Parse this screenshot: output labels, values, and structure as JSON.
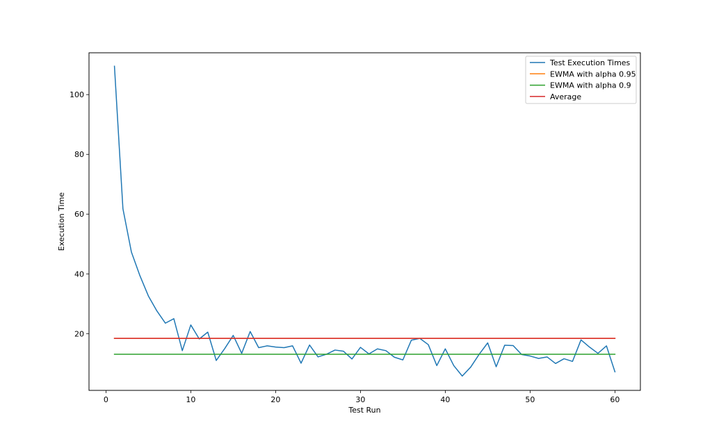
{
  "chart_data": {
    "type": "line",
    "title": "",
    "xlabel": "Test Run",
    "ylabel": "Execution Time",
    "xlim": [
      -2,
      63
    ],
    "ylim": [
      1,
      114
    ],
    "xticks": [
      0,
      10,
      20,
      30,
      40,
      50,
      60
    ],
    "yticks": [
      20,
      40,
      60,
      80,
      100
    ],
    "grid": false,
    "legend_position": "top-right",
    "x": [
      1,
      2,
      3,
      4,
      5,
      6,
      7,
      8,
      9,
      10,
      11,
      12,
      13,
      14,
      15,
      16,
      17,
      18,
      19,
      20,
      21,
      22,
      23,
      24,
      25,
      26,
      27,
      28,
      29,
      30,
      31,
      32,
      33,
      34,
      35,
      36,
      37,
      38,
      39,
      40,
      41,
      42,
      43,
      44,
      45,
      46,
      47,
      48,
      49,
      50,
      51,
      52,
      53,
      54,
      55,
      56,
      57,
      58,
      59,
      60
    ],
    "series": [
      {
        "name": "Test Execution Times",
        "color": "#1f77b4",
        "values": [
          109.5,
          61.8,
          47.3,
          39.4,
          32.6,
          27.6,
          23.5,
          25.0,
          14.3,
          22.9,
          18.2,
          20.5,
          11.0,
          15.0,
          19.4,
          13.4,
          20.7,
          15.3,
          15.9,
          15.5,
          15.3,
          15.9,
          10.1,
          16.2,
          12.2,
          13.1,
          14.5,
          14.1,
          11.5,
          15.4,
          13.2,
          14.9,
          14.3,
          12.1,
          11.2,
          17.8,
          18.4,
          16.3,
          9.3,
          14.9,
          9.3,
          5.8,
          8.8,
          13.1,
          16.9,
          8.9,
          16.1,
          16.0,
          13.0,
          12.5,
          11.7,
          12.2,
          10.0,
          11.6,
          10.7,
          17.9,
          15.5,
          13.4,
          15.9,
          7.2
        ]
      },
      {
        "name": "EWMA with alpha 0.95",
        "color": "#ff7f0e",
        "values": [
          18.4,
          18.4,
          18.4,
          18.4,
          18.4,
          18.4,
          18.4,
          18.4,
          18.4,
          18.4,
          18.4,
          18.4,
          18.4,
          18.4,
          18.4,
          18.4,
          18.4,
          18.4,
          18.4,
          18.4,
          18.4,
          18.4,
          18.4,
          18.4,
          18.4,
          18.4,
          18.4,
          18.4,
          18.4,
          18.4,
          18.4,
          18.4,
          18.4,
          18.4,
          18.4,
          18.4,
          18.4,
          18.4,
          18.4,
          18.4,
          18.4,
          18.4,
          18.4,
          18.4,
          18.4,
          18.4,
          18.4,
          18.4,
          18.4,
          18.4,
          18.4,
          18.4,
          18.4,
          18.4,
          18.4,
          18.4,
          18.4,
          18.4,
          18.4,
          18.4
        ]
      },
      {
        "name": "EWMA with alpha 0.9",
        "color": "#2ca02c",
        "values": [
          13.1,
          13.1,
          13.1,
          13.1,
          13.1,
          13.1,
          13.1,
          13.1,
          13.1,
          13.1,
          13.1,
          13.1,
          13.1,
          13.1,
          13.1,
          13.1,
          13.1,
          13.1,
          13.1,
          13.1,
          13.1,
          13.1,
          13.1,
          13.1,
          13.1,
          13.1,
          13.1,
          13.1,
          13.1,
          13.1,
          13.1,
          13.1,
          13.1,
          13.1,
          13.1,
          13.1,
          13.1,
          13.1,
          13.1,
          13.1,
          13.1,
          13.1,
          13.1,
          13.1,
          13.1,
          13.1,
          13.1,
          13.1,
          13.1,
          13.1,
          13.1,
          13.1,
          13.1,
          13.1,
          13.1,
          13.1,
          13.1,
          13.1,
          13.1,
          13.1
        ]
      },
      {
        "name": "Average",
        "color": "#d62728",
        "values": [
          18.4,
          18.4,
          18.4,
          18.4,
          18.4,
          18.4,
          18.4,
          18.4,
          18.4,
          18.4,
          18.4,
          18.4,
          18.4,
          18.4,
          18.4,
          18.4,
          18.4,
          18.4,
          18.4,
          18.4,
          18.4,
          18.4,
          18.4,
          18.4,
          18.4,
          18.4,
          18.4,
          18.4,
          18.4,
          18.4,
          18.4,
          18.4,
          18.4,
          18.4,
          18.4,
          18.4,
          18.4,
          18.4,
          18.4,
          18.4,
          18.4,
          18.4,
          18.4,
          18.4,
          18.4,
          18.4,
          18.4,
          18.4,
          18.4,
          18.4,
          18.4,
          18.4,
          18.4,
          18.4,
          18.4,
          18.4,
          18.4,
          18.4,
          18.4,
          18.4
        ]
      }
    ]
  }
}
